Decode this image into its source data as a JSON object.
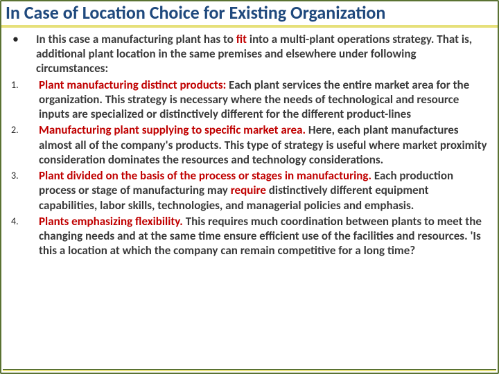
{
  "colors": {
    "title_color": "#1f497d",
    "border_color": "#5a7232",
    "accent_underline": "#e6e07a",
    "body_text": "#3a3a3a",
    "hot_text": "#c00000",
    "background": "#ffffff"
  },
  "typography": {
    "title_fontsize_pt": 24,
    "body_fontsize_pt": 14,
    "body_fontweight": "700",
    "font_family": "Calibri"
  },
  "title": "In Case of Location Choice for Existing Organization",
  "intro": {
    "marker": "•",
    "pre": "In this case a manufacturing plant has to ",
    "hot": "fit",
    "post": " into a multi-plant operations strategy. That is, additional plant location in the same premises and elsewhere under following circumstances:"
  },
  "items": [
    {
      "marker": "1.",
      "lead": "Plant manufacturing distinct products: ",
      "rest": "Each plant services the entire market area for the organization. This strategy is necessary where the needs of technological and resource inputs are specialized or distinctively different for the different product-lines"
    },
    {
      "marker": "2.",
      "lead": "Manufacturing plant supplying to specific market area. ",
      "rest": "Here, each plant manufactures almost all of the company's products. This type of strategy is useful where market proximity consideration dominates the resources and technology considerations."
    },
    {
      "marker": "3.",
      "lead": "Plant divided on the basis of the process or stages in manufacturing. ",
      "rest_pre": "Each production process or stage of manufacturing may ",
      "hot": "require",
      "rest_post": " distinctively different equipment capabilities, labor skills, technologies, and managerial policies and emphasis."
    },
    {
      "marker": "4.",
      "lead": "Plants emphasizing flexibility. ",
      "rest": "This requires much coordination between plants to meet the changing needs and at the same time ensure efficient use of the facilities and resources. 'Is this a location at which the company can remain competitive for a long time?"
    }
  ]
}
